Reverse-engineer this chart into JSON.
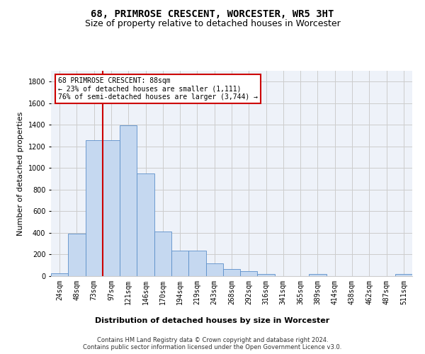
{
  "title": "68, PRIMROSE CRESCENT, WORCESTER, WR5 3HT",
  "subtitle": "Size of property relative to detached houses in Worcester",
  "xlabel": "Distribution of detached houses by size in Worcester",
  "ylabel": "Number of detached properties",
  "categories": [
    "24sqm",
    "48sqm",
    "73sqm",
    "97sqm",
    "121sqm",
    "146sqm",
    "170sqm",
    "194sqm",
    "219sqm",
    "243sqm",
    "268sqm",
    "292sqm",
    "316sqm",
    "341sqm",
    "365sqm",
    "389sqm",
    "414sqm",
    "438sqm",
    "462sqm",
    "487sqm",
    "511sqm"
  ],
  "values": [
    25,
    390,
    1260,
    1260,
    1395,
    950,
    410,
    235,
    235,
    115,
    65,
    45,
    20,
    0,
    0,
    20,
    0,
    0,
    0,
    0,
    20
  ],
  "bar_color": "#c5d8f0",
  "bar_edge_color": "#5b8fc9",
  "vline_color": "#cc0000",
  "annotation_line1": "68 PRIMROSE CRESCENT: 88sqm",
  "annotation_line2": "← 23% of detached houses are smaller (1,111)",
  "annotation_line3": "76% of semi-detached houses are larger (3,744) →",
  "annotation_box_color": "#ffffff",
  "annotation_box_edge": "#cc0000",
  "ylim": [
    0,
    1900
  ],
  "yticks": [
    0,
    200,
    400,
    600,
    800,
    1000,
    1200,
    1400,
    1600,
    1800
  ],
  "grid_color": "#cccccc",
  "bg_color": "#eef2f9",
  "footer": "Contains HM Land Registry data © Crown copyright and database right 2024.\nContains public sector information licensed under the Open Government Licence v3.0.",
  "title_fontsize": 10,
  "subtitle_fontsize": 9,
  "xlabel_fontsize": 8,
  "ylabel_fontsize": 8,
  "footer_fontsize": 6,
  "annot_fontsize": 7,
  "tick_fontsize": 7
}
